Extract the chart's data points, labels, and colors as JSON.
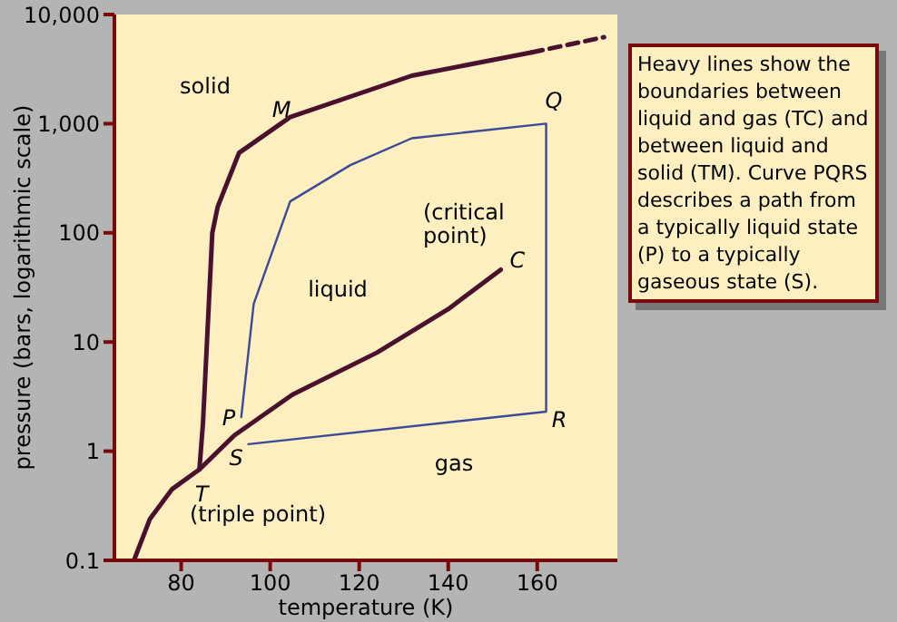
{
  "chart_data": {
    "type": "line",
    "xlabel": "temperature (K)",
    "ylabel": "pressure (bars, logarithmic scale)",
    "log": "y",
    "xlim": [
      65,
      178
    ],
    "xticks": [
      80,
      100,
      120,
      140,
      160
    ],
    "ylim": [
      0.1,
      10000
    ],
    "yticks": [
      0.1,
      1,
      10,
      100,
      {
        "value": 1000,
        "label": "1,000"
      },
      {
        "value": 10000,
        "label": "10,000"
      }
    ],
    "marker": "none",
    "series": [
      {
        "color": "#4a1030",
        "x": [
          69.4,
          73,
          78,
          84.1,
          92,
          105,
          124,
          140,
          151.8
        ],
        "values": [
          0.1,
          0.24,
          0.45,
          0.68,
          1.4,
          3.3,
          8,
          20,
          46
        ]
      },
      {
        "color": "#4a1030",
        "x": [
          84.1,
          84.9,
          87,
          88.2,
          93,
          104.5,
          131.8,
          158.8
        ],
        "values": [
          0.68,
          1.8,
          100,
          173,
          540,
          1150,
          2750,
          4500
        ]
      },
      {
        "color": "#4a1030",
        "line_style": "dashed",
        "x": [
          158.8,
          175
        ],
        "values": [
          4500,
          6200
        ]
      },
      {
        "color": "#3a4a9a",
        "x": [
          93.5,
          96.3,
          104.5,
          118,
          131.8,
          162,
          162,
          95.1
        ],
        "values": [
          2.05,
          22.4,
          194,
          417,
          735,
          1000,
          2.3,
          1.16
        ]
      }
    ],
    "annotations": [
      "solid",
      "liquid",
      "gas",
      "M",
      "Q",
      "(critical point)",
      "C",
      "P",
      "R",
      "S",
      "T",
      "(triple point)",
      "Heavy lines show the boundaries between liquid and gas (TC) and between liquid and solid (TM). Curve PQRS describes a path from a typically liquid state (P) to a typically gaseous state (S)."
    ]
  }
}
